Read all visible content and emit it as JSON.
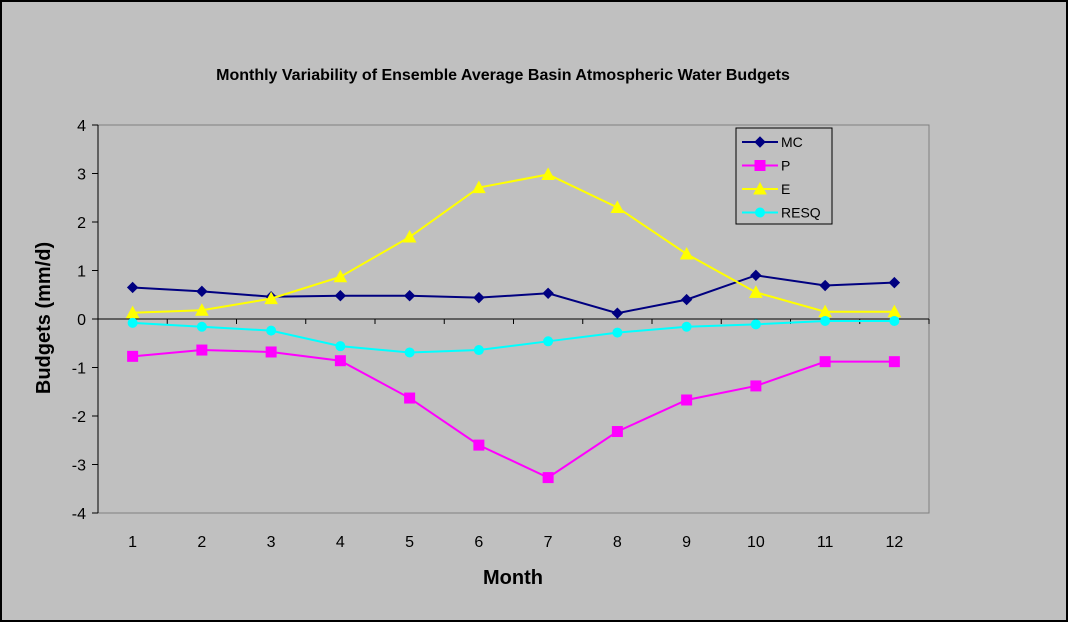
{
  "chart_data": {
    "type": "line",
    "title": "Monthly Variability of Ensemble Average Basin Atmospheric Water Budgets",
    "xlabel": "Month",
    "ylabel": "Budgets (mm/d)",
    "categories": [
      "1",
      "2",
      "3",
      "4",
      "5",
      "6",
      "7",
      "8",
      "9",
      "10",
      "11",
      "12"
    ],
    "ylim": [
      -4,
      4
    ],
    "yticks": [
      "4",
      "3",
      "2",
      "1",
      "0",
      "-1",
      "-2",
      "-3",
      "-4"
    ],
    "grid": false,
    "legend_position": "top-right",
    "series": [
      {
        "name": "MC",
        "color": "#000080",
        "marker": "diamond",
        "values": [
          0.65,
          0.57,
          0.46,
          0.48,
          0.48,
          0.44,
          0.53,
          0.12,
          0.4,
          0.9,
          0.69,
          0.75
        ]
      },
      {
        "name": "P",
        "color": "#FF00FF",
        "marker": "square",
        "values": [
          -0.77,
          -0.64,
          -0.68,
          -0.86,
          -1.63,
          -2.6,
          -3.27,
          -2.32,
          -1.67,
          -1.38,
          -0.88,
          -0.88
        ]
      },
      {
        "name": "E",
        "color": "#FFFF00",
        "marker": "triangle",
        "values": [
          0.13,
          0.18,
          0.42,
          0.87,
          1.69,
          2.71,
          2.98,
          2.3,
          1.34,
          0.55,
          0.15,
          0.15
        ]
      },
      {
        "name": "RESQ",
        "color": "#00FFFF",
        "marker": "circle",
        "values": [
          -0.08,
          -0.16,
          -0.24,
          -0.56,
          -0.69,
          -0.64,
          -0.46,
          -0.28,
          -0.16,
          -0.11,
          -0.04,
          -0.04
        ]
      }
    ],
    "colors": {
      "outer_background": "#C0C0C0",
      "plot_background": "#C0C0C0",
      "zero_line": "#000000"
    }
  }
}
